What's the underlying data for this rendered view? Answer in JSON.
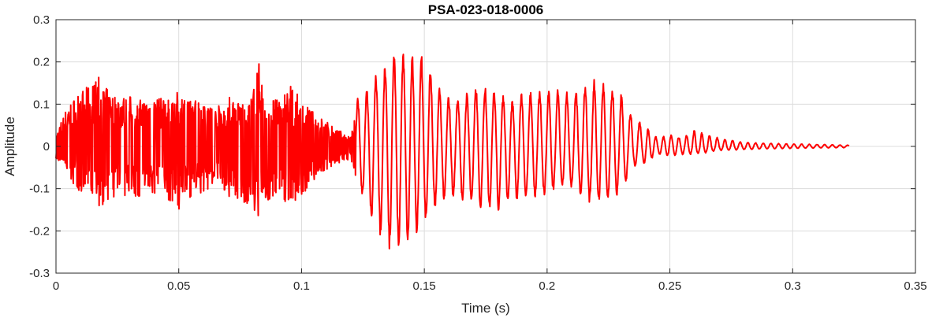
{
  "chart_data": {
    "type": "line",
    "title": "PSA-023-018-0006",
    "xlabel": "Time (s)",
    "ylabel": "Amplitude",
    "xlim": [
      0,
      0.35
    ],
    "ylim": [
      -0.3,
      0.3
    ],
    "xticks": [
      0,
      0.05,
      0.1,
      0.15,
      0.2,
      0.25,
      0.3,
      0.35
    ],
    "xtick_labels": [
      "0",
      "0.05",
      "0.1",
      "0.15",
      "0.2",
      "0.25",
      "0.3",
      "0.35"
    ],
    "yticks": [
      -0.3,
      -0.2,
      -0.1,
      0,
      0.1,
      0.2,
      0.3
    ],
    "ytick_labels": [
      "-0.3",
      "-0.2",
      "-0.1",
      "0",
      "0.1",
      "0.2",
      "0.3"
    ],
    "grid": true,
    "series": [
      {
        "color": "#ff0000",
        "x_start": 0,
        "x_end": 0.323,
        "x": [
          0.0,
          0.005,
          0.01,
          0.015,
          0.018,
          0.02,
          0.025,
          0.03,
          0.035,
          0.04,
          0.045,
          0.05,
          0.055,
          0.06,
          0.065,
          0.07,
          0.075,
          0.08,
          0.082,
          0.085,
          0.09,
          0.095,
          0.1,
          0.105,
          0.11,
          0.115,
          0.12,
          0.123,
          0.126,
          0.13,
          0.135,
          0.14,
          0.145,
          0.15,
          0.155,
          0.16,
          0.165,
          0.17,
          0.175,
          0.18,
          0.185,
          0.19,
          0.195,
          0.2,
          0.205,
          0.21,
          0.215,
          0.22,
          0.225,
          0.23,
          0.235,
          0.24,
          0.245,
          0.25,
          0.255,
          0.26,
          0.265,
          0.27,
          0.28,
          0.29,
          0.3,
          0.31,
          0.323
        ],
        "envelope_upper": [
          0.03,
          0.1,
          0.13,
          0.15,
          0.17,
          0.14,
          0.12,
          0.12,
          0.11,
          0.12,
          0.11,
          0.13,
          0.11,
          0.12,
          0.09,
          0.12,
          0.11,
          0.12,
          0.22,
          0.12,
          0.11,
          0.15,
          0.11,
          0.08,
          0.06,
          0.04,
          0.02,
          0.12,
          0.13,
          0.17,
          0.2,
          0.24,
          0.22,
          0.23,
          0.15,
          0.12,
          0.12,
          0.14,
          0.15,
          0.13,
          0.11,
          0.13,
          0.14,
          0.14,
          0.14,
          0.13,
          0.15,
          0.16,
          0.15,
          0.13,
          0.07,
          0.05,
          0.02,
          0.03,
          0.02,
          0.04,
          0.03,
          0.02,
          0.01,
          0.008,
          0.006,
          0.005,
          0.003
        ],
        "envelope_lower": [
          -0.03,
          -0.08,
          -0.11,
          -0.13,
          -0.15,
          -0.14,
          -0.12,
          -0.12,
          -0.13,
          -0.12,
          -0.14,
          -0.15,
          -0.12,
          -0.11,
          -0.1,
          -0.12,
          -0.13,
          -0.14,
          -0.18,
          -0.14,
          -0.12,
          -0.14,
          -0.12,
          -0.08,
          -0.06,
          -0.04,
          -0.03,
          -0.1,
          -0.14,
          -0.2,
          -0.25,
          -0.25,
          -0.22,
          -0.19,
          -0.14,
          -0.12,
          -0.13,
          -0.14,
          -0.16,
          -0.16,
          -0.14,
          -0.13,
          -0.12,
          -0.12,
          -0.1,
          -0.1,
          -0.13,
          -0.14,
          -0.13,
          -0.11,
          -0.05,
          -0.04,
          -0.02,
          -0.025,
          -0.02,
          -0.02,
          -0.015,
          -0.01,
          -0.008,
          -0.006,
          -0.005,
          -0.004,
          -0.003
        ]
      }
    ]
  }
}
